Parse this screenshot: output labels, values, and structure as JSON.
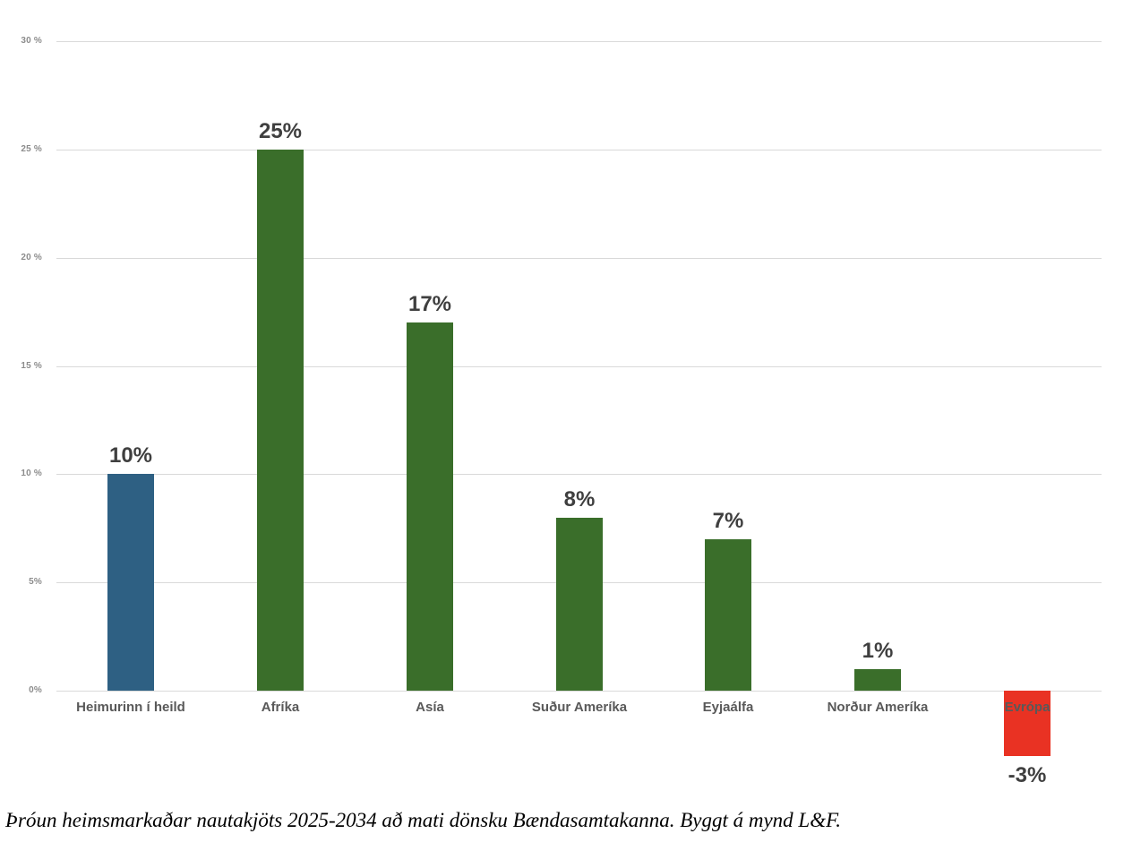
{
  "chart_data": {
    "type": "bar",
    "title": "",
    "xlabel": "",
    "ylabel": "",
    "categories": [
      "Heimurinn í heild",
      "Afríka",
      "Asía",
      "Suður Ameríka",
      "Eyjaálfa",
      "Norður Ameríka",
      "Evrópa"
    ],
    "values": [
      10,
      25,
      17,
      8,
      7,
      1,
      -3
    ],
    "value_labels": [
      "10%",
      "25%",
      "17%",
      "8%",
      "7%",
      "1%",
      "-3%"
    ],
    "bar_colors": [
      "#2e6083",
      "#3a6e2a",
      "#3a6e2a",
      "#3a6e2a",
      "#3a6e2a",
      "#3a6e2a",
      "#e93223"
    ],
    "yticks": [
      {
        "value": 30,
        "label": "30 %"
      },
      {
        "value": 25,
        "label": "25 %"
      },
      {
        "value": 20,
        "label": "20 %"
      },
      {
        "value": 15,
        "label": "15 %"
      },
      {
        "value": 10,
        "label": "10 %"
      },
      {
        "value": 5,
        "label": "5%"
      },
      {
        "value": 0,
        "label": "0%"
      }
    ],
    "ylim": [
      -4,
      30
    ],
    "grid": true,
    "legend": false
  },
  "colors": {
    "world_bar": "#2e6083",
    "growth_bar": "#3a6e2a",
    "negative_bar": "#e93223",
    "gridline": "#d9d9d9",
    "value_label": "#3f3f3f",
    "category_label": "#595959",
    "axis_tick_label": "#8c8c8c"
  },
  "caption": "Þróun heimsmarkaðar nautakjöts 2025-2034 að mati dönsku Bændasamtakanna. Byggt á mynd L&F."
}
